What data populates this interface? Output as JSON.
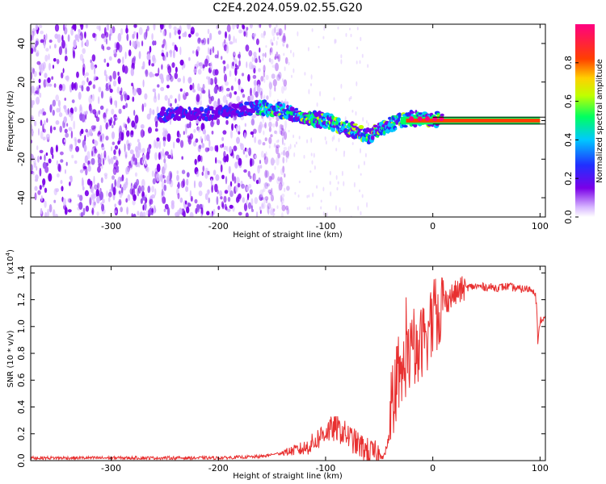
{
  "title": "C2E4.2024.059.02.55.G20",
  "colors": {
    "snr_line": "#e83030",
    "spectrogram_noise": "#7a10e8",
    "trace_line": "#000000"
  },
  "colormap": [
    "#ffffff",
    "#d8b8ff",
    "#7a00e8",
    "#2030ff",
    "#00c8ff",
    "#00ff60",
    "#c0ff00",
    "#ffd000",
    "#ff4000",
    "#ff0080"
  ],
  "chart_data": [
    {
      "type": "heatmap",
      "title": "C2E4.2024.059.02.55.G20",
      "xlabel": "Height of straight line (km)",
      "ylabel": "Frequency (Hz)",
      "xlim": [
        -375,
        105
      ],
      "ylim": [
        -50,
        50
      ],
      "x_ticks": [
        -300,
        -200,
        -100,
        0,
        100
      ],
      "x_tick_labels": [
        "-300",
        "-200",
        "-100",
        "0",
        "100"
      ],
      "y_ticks": [
        -40,
        -20,
        0,
        20,
        40
      ],
      "y_tick_labels": [
        "-40",
        "-20",
        "0",
        "20",
        "40"
      ],
      "colorbar": {
        "label": "Normalized spectral amplitude",
        "range": [
          0,
          1
        ],
        "ticks": [
          0.0,
          0.2,
          0.4,
          0.6,
          0.8
        ],
        "tick_labels": [
          "0.0",
          "0.2",
          "0.4",
          "0.6",
          "0.8"
        ]
      },
      "signal_trace": {
        "x": [
          -255,
          -200,
          -160,
          -140,
          -120,
          -100,
          -85,
          -70,
          -60,
          -50,
          -40,
          -30,
          -20,
          -10,
          0,
          10,
          100
        ],
        "y": [
          3,
          4,
          7,
          5,
          2,
          0,
          -3,
          -6,
          -8,
          -5,
          -2,
          0,
          1,
          1,
          1,
          0,
          0
        ]
      },
      "noise_extent_x": [
        -375,
        -160
      ],
      "grid": false
    },
    {
      "type": "line",
      "xlabel": "Height of straight line (km)",
      "ylabel": "SNR (10 * v/v)",
      "y_scale_label": "(x10",
      "y_scale_exponent": "4",
      "xlim": [
        -375,
        105
      ],
      "ylim": [
        0,
        1.45
      ],
      "x_ticks": [
        -300,
        -200,
        -100,
        0,
        100
      ],
      "x_tick_labels": [
        "-300",
        "-200",
        "-100",
        "0",
        "100"
      ],
      "y_ticks": [
        0.0,
        0.2,
        0.4,
        0.6,
        0.8,
        1.0,
        1.2,
        1.4
      ],
      "y_tick_labels": [
        "0.0",
        "0.2",
        "0.4",
        "0.6",
        "0.8",
        "1.0",
        "1.2",
        "1.4"
      ],
      "series": [
        {
          "x": [
            -375,
            -300,
            -200,
            -160,
            -140,
            -120,
            -110,
            -100,
            -90,
            -80,
            -70,
            -60,
            -50,
            -45,
            -40,
            -35,
            -30,
            -25,
            -20,
            -15,
            -10,
            -5,
            0,
            10,
            20,
            30,
            40,
            60,
            70,
            80,
            90,
            95,
            97,
            98,
            100,
            105
          ],
          "y": [
            0.02,
            0.02,
            0.02,
            0.03,
            0.06,
            0.09,
            0.14,
            0.22,
            0.24,
            0.19,
            0.12,
            0.07,
            0.04,
            0.04,
            0.2,
            0.35,
            0.6,
            0.75,
            0.8,
            0.75,
            0.9,
            0.95,
            1.05,
            1.18,
            1.24,
            1.29,
            1.3,
            1.29,
            1.3,
            1.28,
            1.28,
            1.27,
            1.15,
            0.85,
            1.05,
            1.06
          ]
        }
      ],
      "grid": false
    }
  ]
}
